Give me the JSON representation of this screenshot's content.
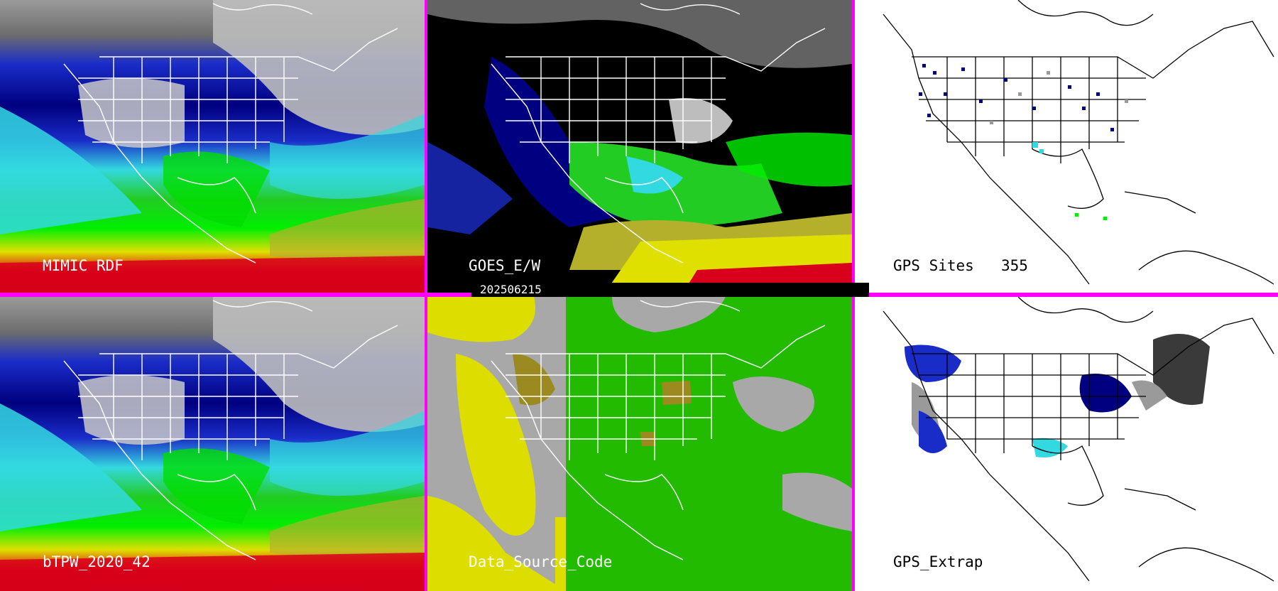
{
  "panels": [
    {
      "id": "mimic",
      "label": "MIMIC RDF",
      "style": "moisture-full"
    },
    {
      "id": "goes",
      "label": "GOES_E/W",
      "style": "moisture-masked"
    },
    {
      "id": "gps",
      "label": "GPS Sites",
      "count": "355",
      "style": "gps-points"
    },
    {
      "id": "btpw",
      "label": "bTPW_2020_42",
      "style": "moisture-full"
    },
    {
      "id": "dsc",
      "label": "Data_Source_Code",
      "style": "source-code"
    },
    {
      "id": "gpsx",
      "label": "GPS_Extrap",
      "style": "gps-extrap"
    }
  ],
  "timestamp": "202506215",
  "colors": {
    "divider": "#ff00ff",
    "tpw_scale": [
      "#9a9a9a",
      "#cfcfcf",
      "#000080",
      "#1a2cc8",
      "#33d9e0",
      "#98f2f2",
      "#22cc22",
      "#00ff00",
      "#b5b02c",
      "#e0e000",
      "#ff9900",
      "#d8001a",
      "#7a00a0"
    ],
    "source_gray": "#a8a8a8",
    "source_green": "#22bb00",
    "source_yellow": "#dddd00",
    "source_olive": "#9a8a20"
  },
  "icons": [
    "map-coastline-icon",
    "state-border-icon"
  ]
}
